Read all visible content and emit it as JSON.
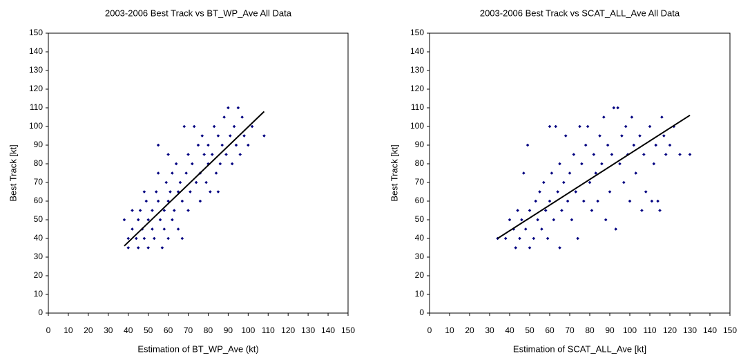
{
  "chart_data": [
    {
      "type": "scatter",
      "title": "2003-2006 Best Track vs BT_WP_Ave All Data",
      "x_label": "Estimation of BT_WP_Ave (kt)",
      "y_label": "Best Track [kt]",
      "color": "#000080",
      "x": [
        38,
        40,
        40,
        42,
        42,
        44,
        45,
        46,
        47,
        48,
        49,
        50,
        50,
        52,
        52,
        53,
        54,
        55,
        55,
        56,
        57,
        58,
        58,
        59,
        60,
        60,
        61,
        62,
        62,
        63,
        64,
        65,
        65,
        66,
        67,
        67,
        68,
        69,
        70,
        70,
        71,
        72,
        73,
        74,
        75,
        76,
        76,
        77,
        78,
        79,
        80,
        80,
        81,
        82,
        83,
        84,
        85,
        86,
        87,
        88,
        89,
        90,
        91,
        92,
        93,
        94,
        95,
        96,
        97,
        98,
        100,
        102,
        108,
        45,
        48,
        55,
        60,
        85
      ],
      "y": [
        50,
        35,
        40,
        55,
        45,
        40,
        50,
        55,
        45,
        40,
        60,
        35,
        50,
        45,
        55,
        40,
        65,
        60,
        90,
        50,
        35,
        45,
        55,
        70,
        40,
        60,
        65,
        50,
        75,
        55,
        80,
        45,
        65,
        70,
        40,
        60,
        100,
        75,
        55,
        85,
        65,
        80,
        100,
        70,
        90,
        60,
        75,
        95,
        85,
        70,
        80,
        90,
        65,
        85,
        100,
        75,
        95,
        80,
        90,
        105,
        85,
        110,
        95,
        80,
        100,
        90,
        110,
        85,
        105,
        95,
        90,
        100,
        95,
        35,
        65,
        75,
        85,
        65
      ],
      "trendline": {
        "x": [
          38,
          108
        ],
        "y": [
          36,
          108
        ]
      },
      "xlim": [
        0,
        150
      ],
      "ylim": [
        0,
        150
      ],
      "xticks": [
        0,
        10,
        20,
        30,
        40,
        50,
        60,
        70,
        80,
        90,
        100,
        110,
        120,
        130,
        140,
        150
      ],
      "yticks": [
        0,
        10,
        20,
        30,
        40,
        50,
        60,
        70,
        80,
        90,
        100,
        110,
        120,
        130,
        140,
        150
      ]
    },
    {
      "type": "scatter",
      "title": "2003-2006 Best Track vs SCAT_ALL_Ave All Data",
      "x_label": "Estimation of SCAT_ALL_Ave [kt]",
      "y_label": "Best Track  [kt]",
      "color": "#000080",
      "x": [
        34,
        38,
        40,
        42,
        43,
        44,
        45,
        46,
        47,
        48,
        49,
        50,
        50,
        52,
        53,
        54,
        55,
        56,
        57,
        58,
        59,
        60,
        60,
        61,
        62,
        63,
        64,
        65,
        65,
        66,
        67,
        68,
        69,
        70,
        71,
        72,
        73,
        74,
        75,
        76,
        77,
        78,
        79,
        80,
        81,
        82,
        83,
        84,
        85,
        86,
        87,
        88,
        89,
        90,
        91,
        92,
        93,
        94,
        95,
        96,
        97,
        98,
        99,
        100,
        101,
        102,
        103,
        105,
        106,
        107,
        108,
        110,
        111,
        112,
        113,
        114,
        115,
        116,
        117,
        118,
        120,
        122,
        125,
        130
      ],
      "y": [
        40,
        40,
        50,
        45,
        35,
        55,
        40,
        50,
        75,
        45,
        90,
        35,
        55,
        40,
        60,
        50,
        65,
        45,
        70,
        55,
        40,
        100,
        60,
        75,
        50,
        100,
        65,
        35,
        80,
        55,
        70,
        95,
        60,
        75,
        50,
        85,
        65,
        40,
        100,
        80,
        60,
        90,
        100,
        70,
        55,
        85,
        75,
        60,
        95,
        80,
        105,
        50,
        90,
        65,
        85,
        110,
        45,
        110,
        80,
        95,
        70,
        100,
        85,
        60,
        105,
        90,
        75,
        95,
        55,
        85,
        65,
        100,
        60,
        80,
        90,
        60,
        55,
        105,
        95,
        85,
        90,
        100,
        85,
        85
      ],
      "trendline": {
        "x": [
          34,
          130
        ],
        "y": [
          40,
          106
        ]
      },
      "xlim": [
        0,
        150
      ],
      "ylim": [
        0,
        150
      ],
      "xticks": [
        0,
        10,
        20,
        30,
        40,
        50,
        60,
        70,
        80,
        90,
        100,
        110,
        120,
        130,
        140,
        150
      ],
      "yticks": [
        0,
        10,
        20,
        30,
        40,
        50,
        60,
        70,
        80,
        90,
        100,
        110,
        120,
        130,
        140,
        150
      ]
    }
  ]
}
